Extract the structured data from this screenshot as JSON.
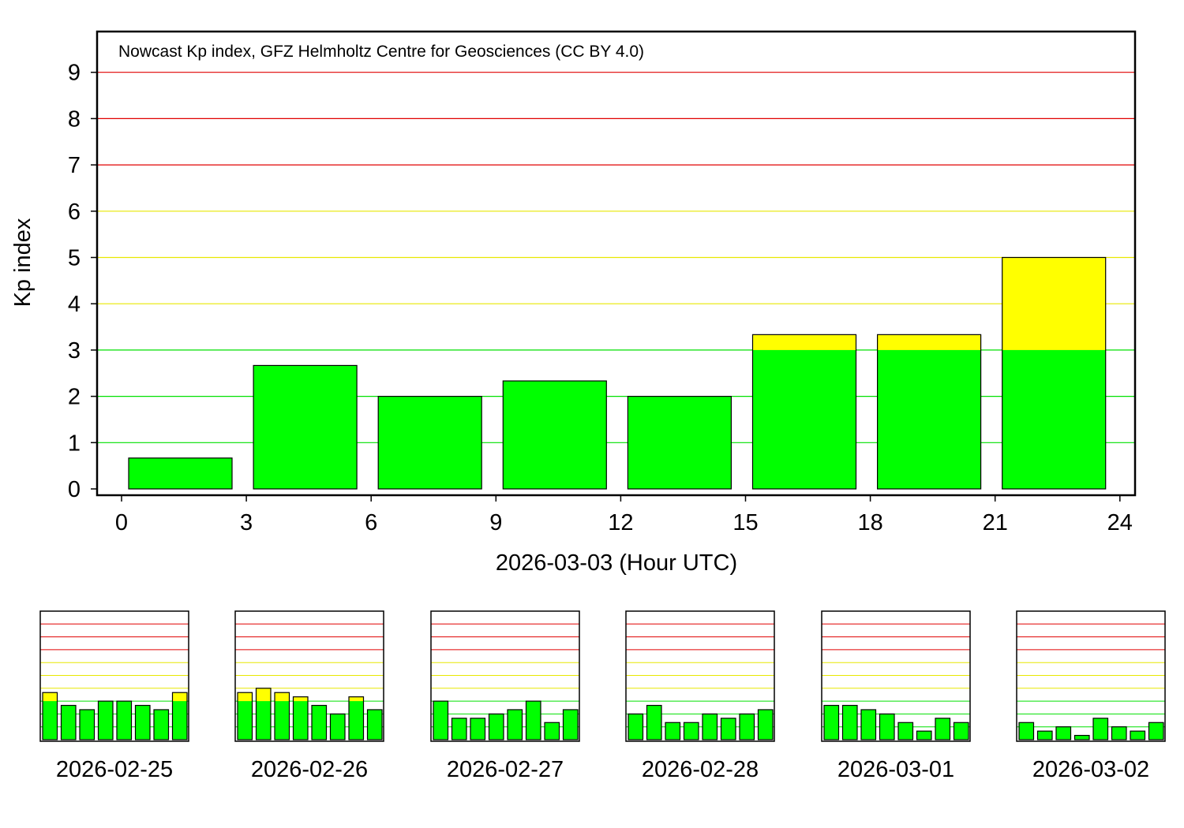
{
  "chart_data": [
    {
      "type": "bar",
      "title": "Nowcast Kp index, GFZ Helmholtz Centre for Geosciences (CC BY 4.0)",
      "ylabel": "Kp index",
      "xlabel": "2026-03-03 (Hour UTC)",
      "ylim": [
        0,
        10
      ],
      "xlim": [
        0,
        24
      ],
      "y_ticks": [
        "0",
        "1",
        "2",
        "3",
        "4",
        "5",
        "6",
        "7",
        "8",
        "9"
      ],
      "x_ticks": [
        "0",
        "3",
        "6",
        "9",
        "12",
        "15",
        "18",
        "21",
        "24"
      ],
      "bin_starts_hour": [
        0,
        3,
        6,
        9,
        12,
        15,
        18,
        21
      ],
      "values": [
        0.667,
        2.667,
        2.0,
        2.333,
        2.0,
        3.333,
        3.333,
        5.0
      ],
      "grid": true
    },
    {
      "type": "bar",
      "xlabel": "2026-02-25",
      "ylim": [
        0,
        10
      ],
      "values": [
        3.667,
        2.667,
        2.333,
        3.0,
        3.0,
        2.667,
        2.333,
        3.667
      ]
    },
    {
      "type": "bar",
      "xlabel": "2026-02-26",
      "ylim": [
        0,
        10
      ],
      "values": [
        3.667,
        4.0,
        3.667,
        3.333,
        2.667,
        2.0,
        3.333,
        2.333
      ]
    },
    {
      "type": "bar",
      "xlabel": "2026-02-27",
      "ylim": [
        0,
        10
      ],
      "values": [
        3.0,
        1.667,
        1.667,
        2.0,
        2.333,
        3.0,
        1.333,
        2.333
      ]
    },
    {
      "type": "bar",
      "xlabel": "2026-02-28",
      "ylim": [
        0,
        10
      ],
      "values": [
        2.0,
        2.667,
        1.333,
        1.333,
        2.0,
        1.667,
        2.0,
        2.333
      ]
    },
    {
      "type": "bar",
      "xlabel": "2026-03-01",
      "ylim": [
        0,
        10
      ],
      "values": [
        2.667,
        2.667,
        2.333,
        2.0,
        1.333,
        0.667,
        1.667,
        1.333
      ]
    },
    {
      "type": "bar",
      "xlabel": "2026-03-02",
      "ylim": [
        0,
        10
      ],
      "values": [
        1.333,
        0.667,
        1.0,
        0.333,
        1.667,
        1.0,
        0.667,
        1.333
      ]
    }
  ],
  "colors": {
    "quiet": "#00ff00",
    "active": "#ffff00",
    "storm": "#ff0000",
    "grid_green": "#00e000",
    "grid_yellow": "#e8e800",
    "grid_red": "#e00000",
    "frame": "#000000"
  }
}
